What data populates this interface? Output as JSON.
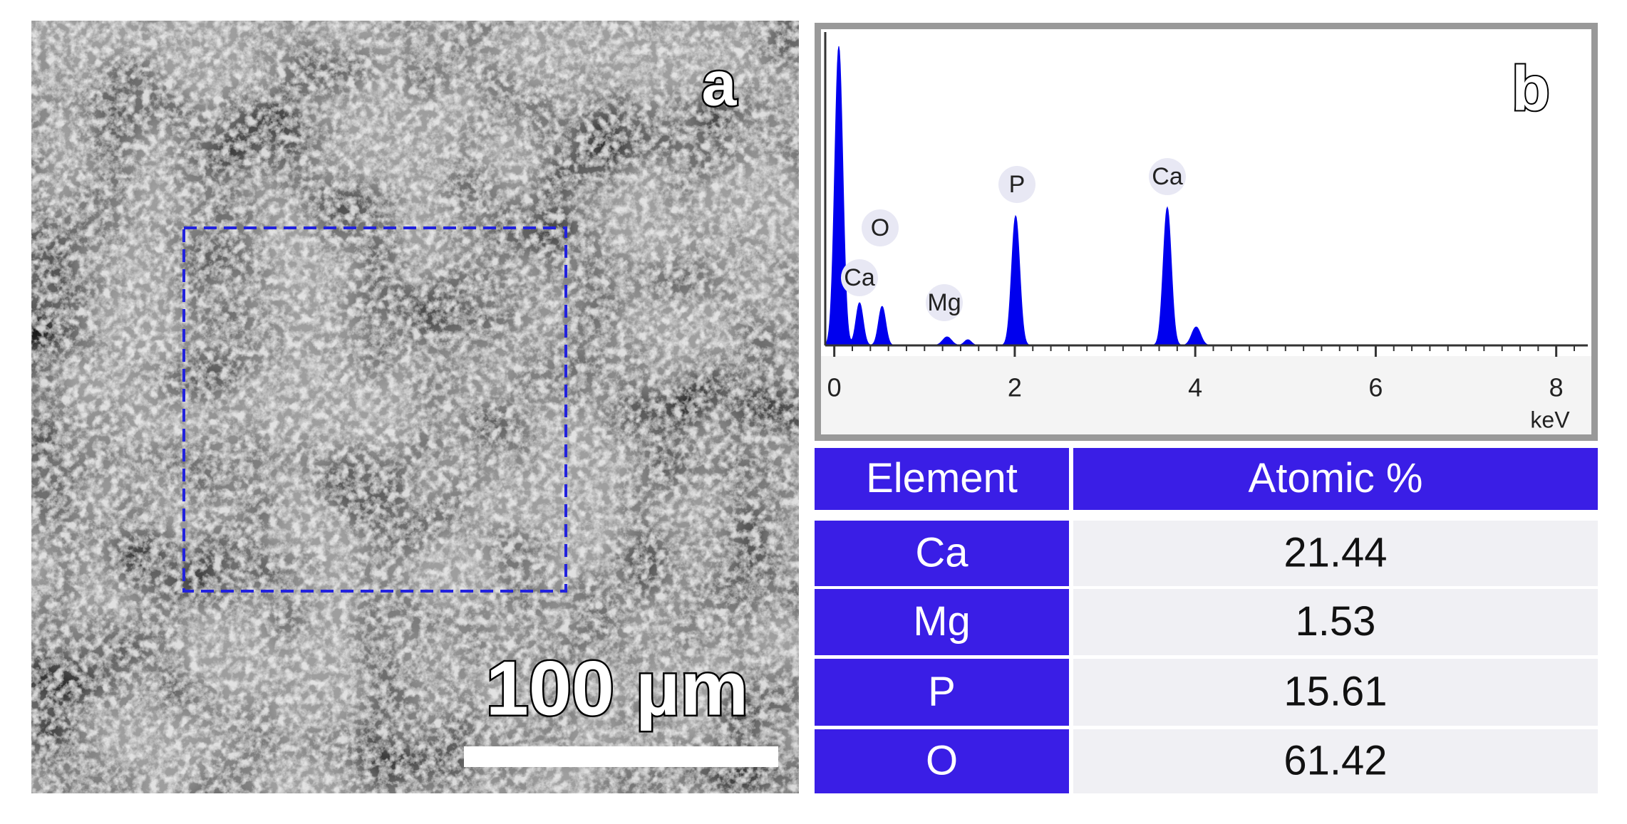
{
  "panel_a": {
    "label": "a",
    "scale_bar": "100 µm"
  },
  "panel_b": {
    "label": "b",
    "spectrum": {
      "x_label": "keV",
      "xticks": [
        0,
        2,
        4,
        6,
        8
      ],
      "xlim": [
        -0.1,
        8.35
      ],
      "peak_labels": [
        "O",
        "Ca",
        "Mg",
        "P",
        "Ca"
      ]
    },
    "table": {
      "header": [
        "Element",
        "Atomic %"
      ],
      "rows": [
        [
          "Ca",
          21.44
        ],
        [
          "Mg",
          1.53
        ],
        [
          "P",
          15.61
        ],
        [
          "O",
          61.42
        ]
      ]
    }
  }
}
